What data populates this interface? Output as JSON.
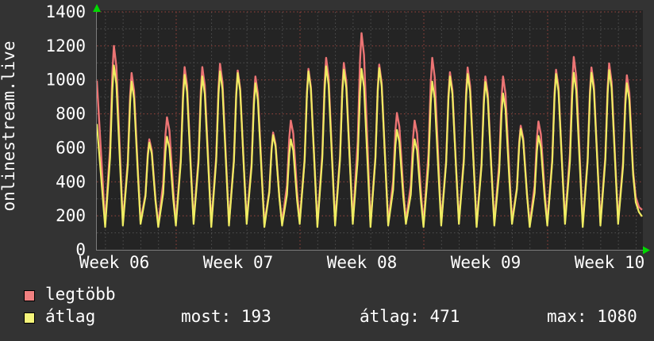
{
  "graph": {
    "vertical_title": "onlinestream.live",
    "background_color": "#333333",
    "canvas_color": "#242424",
    "axis_color": "#7c7c7c",
    "arrow_color": "#00d800",
    "grid_major_color": "#9a443d",
    "grid_minor_color": "#4f4f4f",
    "text_color": "#ffffff"
  },
  "legend": {
    "items": [
      {
        "label": "legtöbb",
        "swatch_color": "#f08080"
      },
      {
        "label": "átlag",
        "swatch_color": "#f5f47a"
      }
    ]
  },
  "stats": [
    {
      "label": "most:",
      "value": "193",
      "text": "most: 193"
    },
    {
      "label": "átlag:",
      "value": "471",
      "text": "átlag: 471"
    },
    {
      "label": "max:",
      "value": "1080",
      "text": "max: 1080"
    }
  ],
  "chart_data": {
    "type": "line",
    "title": "onlinestream.live",
    "xlabel": "",
    "ylabel": "",
    "ylim": [
      0,
      1400
    ],
    "y_tick_step": 200,
    "y_ticks": [
      "0",
      "200",
      "400",
      "600",
      "800",
      "1000",
      "1200",
      "1400"
    ],
    "x_tick_labels": [
      "Week 06",
      "Week 07",
      "Week 08",
      "Week 09",
      "Week 10"
    ],
    "grid": "dotted; red major lines every 200 units and at week boundaries, gray minor lines every 100 units and daily",
    "legend_position": "bottom-left",
    "pattern": "daily oscillation between a nightly low of ~130-160 and a daytime peak; weekends dip to ~650-800",
    "series": [
      {
        "name": "legtöbb",
        "color": "#ec7474",
        "nightly_low": 152,
        "start_value": 995,
        "end_values": [
          310,
          252,
          235
        ],
        "daily_peak_values": [
          1200,
          1040,
          650,
          780,
          1075,
          1075,
          1095,
          1055,
          1020,
          690,
          760,
          1065,
          1130,
          1100,
          1275,
          1090,
          805,
          760,
          1130,
          1045,
          1073,
          1020,
          1020,
          730,
          755,
          1060,
          1135,
          1073,
          1097,
          1027
        ]
      },
      {
        "name": "átlag",
        "color": "#efed62",
        "nightly_low": 134,
        "start_value": 740,
        "end_values": [
          280,
          222,
          196
        ],
        "daily_peak_values": [
          1085,
          990,
          630,
          665,
          1030,
          1020,
          1050,
          1040,
          980,
          675,
          650,
          1050,
          1080,
          1060,
          1065,
          1070,
          705,
          650,
          990,
          1020,
          1035,
          988,
          920,
          712,
          670,
          1035,
          1042,
          1042,
          1058,
          980
        ]
      }
    ],
    "summary_stats": {
      "most": 193,
      "atlag": 471,
      "max": 1080
    }
  }
}
